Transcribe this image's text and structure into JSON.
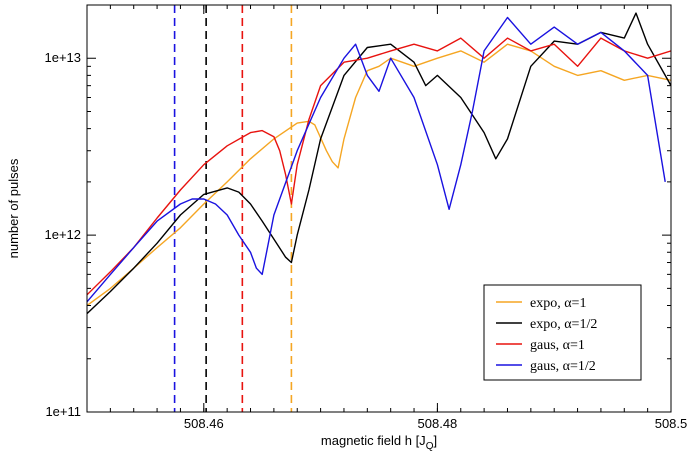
{
  "chart_data": {
    "type": "line",
    "xlabel": "magnetic field h [J",
    "xlabel_sub": "Q",
    "xlabel_close": "]",
    "ylabel": "number of pulses",
    "xlim": [
      508.45,
      508.5
    ],
    "ylim": [
      100000000000.0,
      20000000000000.0
    ],
    "yscale": "log",
    "x_ticks": [
      508.46,
      508.48,
      508.5
    ],
    "x_tick_labels": [
      "508.46",
      "508.48",
      "508.5"
    ],
    "y_ticks": [
      100000000000.0,
      1000000000000.0,
      10000000000000.0
    ],
    "y_tick_labels": [
      "1e+11",
      "1e+12",
      "1e+13"
    ],
    "legend_position": "lower-right",
    "series": [
      {
        "name": "expo, α=1",
        "color": "#f5a623",
        "vline": 508.4675,
        "x": [
          508.45,
          508.452,
          508.454,
          508.456,
          508.458,
          508.46,
          508.462,
          508.464,
          508.466,
          508.468,
          508.469,
          508.4695,
          508.4705,
          508.471,
          508.4715,
          508.472,
          508.473,
          508.474,
          508.475,
          508.476,
          508.478,
          508.48,
          508.482,
          508.484,
          508.486,
          508.488,
          508.49,
          508.492,
          508.494,
          508.496,
          508.498,
          508.5
        ],
        "y": [
          400000000000.0,
          500000000000.0,
          650000000000.0,
          850000000000.0,
          1100000000000.0,
          1500000000000.0,
          2000000000000.0,
          2700000000000.0,
          3500000000000.0,
          4300000000000.0,
          4400000000000.0,
          4200000000000.0,
          3000000000000.0,
          2600000000000.0,
          2400000000000.0,
          3500000000000.0,
          6000000000000.0,
          8500000000000.0,
          9000000000000.0,
          10000000000000.0,
          9000000000000.0,
          10000000000000.0,
          11000000000000.0,
          9500000000000.0,
          12000000000000.0,
          11000000000000.0,
          9000000000000.0,
          8000000000000.0,
          8500000000000.0,
          7500000000000.0,
          8000000000000.0,
          7500000000000.0
        ]
      },
      {
        "name": "expo, α=1/2",
        "color": "#000000",
        "vline": 508.4602,
        "x": [
          508.45,
          508.452,
          508.454,
          508.456,
          508.458,
          508.46,
          508.462,
          508.463,
          508.464,
          508.465,
          508.466,
          508.467,
          508.4675,
          508.468,
          508.469,
          508.47,
          508.472,
          508.474,
          508.476,
          508.478,
          508.479,
          508.48,
          508.482,
          508.484,
          508.485,
          508.486,
          508.488,
          508.49,
          508.492,
          508.494,
          508.496,
          508.497,
          508.498,
          508.5
        ],
        "y": [
          360000000000.0,
          480000000000.0,
          650000000000.0,
          900000000000.0,
          1300000000000.0,
          1700000000000.0,
          1850000000000.0,
          1750000000000.0,
          1500000000000.0,
          1200000000000.0,
          950000000000.0,
          750000000000.0,
          700000000000.0,
          1000000000000.0,
          1800000000000.0,
          3500000000000.0,
          8000000000000.0,
          11500000000000.0,
          12000000000000.0,
          9500000000000.0,
          7000000000000.0,
          8000000000000.0,
          6000000000000.0,
          3800000000000.0,
          2700000000000.0,
          3500000000000.0,
          9000000000000.0,
          12500000000000.0,
          12000000000000.0,
          14000000000000.0,
          13000000000000.0,
          18000000000000.0,
          12000000000000.0,
          7000000000000.0
        ]
      },
      {
        "name": "gaus, α=1",
        "color": "#e8130f",
        "vline": 508.4633,
        "x": [
          508.45,
          508.452,
          508.454,
          508.456,
          508.458,
          508.46,
          508.462,
          508.464,
          508.465,
          508.466,
          508.4665,
          508.467,
          508.4675,
          508.468,
          508.469,
          508.47,
          508.472,
          508.474,
          508.476,
          508.478,
          508.48,
          508.482,
          508.484,
          508.486,
          508.488,
          508.49,
          508.492,
          508.494,
          508.496,
          508.498,
          508.5
        ],
        "y": [
          460000000000.0,
          620000000000.0,
          850000000000.0,
          1250000000000.0,
          1800000000000.0,
          2500000000000.0,
          3200000000000.0,
          3800000000000.0,
          3900000000000.0,
          3600000000000.0,
          3000000000000.0,
          2200000000000.0,
          1500000000000.0,
          2500000000000.0,
          4500000000000.0,
          7000000000000.0,
          9500000000000.0,
          10000000000000.0,
          11000000000000.0,
          12000000000000.0,
          11000000000000.0,
          13000000000000.0,
          10000000000000.0,
          13000000000000.0,
          11000000000000.0,
          12000000000000.0,
          9000000000000.0,
          13000000000000.0,
          11000000000000.0,
          10000000000000.0,
          11000000000000.0
        ]
      },
      {
        "name": "gaus, α=1/2",
        "color": "#1a12e0",
        "vline": 508.4575,
        "x": [
          508.45,
          508.452,
          508.454,
          508.456,
          508.458,
          508.459,
          508.46,
          508.461,
          508.462,
          508.463,
          508.464,
          508.4645,
          508.465,
          508.466,
          508.468,
          508.47,
          508.472,
          508.473,
          508.474,
          508.475,
          508.476,
          508.478,
          508.48,
          508.481,
          508.482,
          508.483,
          508.484,
          508.486,
          508.488,
          508.49,
          508.492,
          508.494,
          508.496,
          508.498,
          508.4995
        ],
        "y": [
          420000000000.0,
          600000000000.0,
          850000000000.0,
          1200000000000.0,
          1500000000000.0,
          1600000000000.0,
          1600000000000.0,
          1500000000000.0,
          1300000000000.0,
          1000000000000.0,
          800000000000.0,
          650000000000.0,
          600000000000.0,
          1300000000000.0,
          3000000000000.0,
          6000000000000.0,
          10000000000000.0,
          12000000000000.0,
          8000000000000.0,
          6500000000000.0,
          10000000000000.0,
          6000000000000.0,
          2500000000000.0,
          1400000000000.0,
          2500000000000.0,
          5000000000000.0,
          11000000000000.0,
          17000000000000.0,
          12000000000000.0,
          15000000000000.0,
          12000000000000.0,
          14000000000000.0,
          11000000000000.0,
          8000000000000.0,
          2000000000000.0
        ]
      }
    ]
  }
}
